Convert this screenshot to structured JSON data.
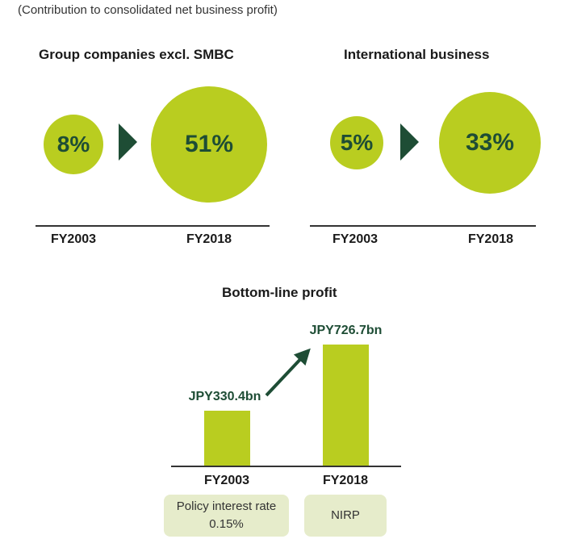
{
  "caption": "(Contribution to consolidated net business profit)",
  "colors": {
    "accent": "#b9cd20",
    "dark_green": "#1e4d35",
    "pill_bg": "#e6eccb"
  },
  "chart_data": [
    {
      "type": "bubble",
      "title": "Group companies excl. SMBC",
      "categories": [
        "FY2003",
        "FY2018"
      ],
      "values": [
        8,
        51
      ],
      "labels": [
        "8%",
        "51%"
      ],
      "unit": "%"
    },
    {
      "type": "bubble",
      "title": "International business",
      "categories": [
        "FY2003",
        "FY2018"
      ],
      "values": [
        5,
        33
      ],
      "labels": [
        "5%",
        "33%"
      ],
      "unit": "%"
    },
    {
      "type": "bar",
      "title": "Bottom-line profit",
      "categories": [
        "FY2003",
        "FY2018"
      ],
      "values": [
        330.4,
        726.7
      ],
      "labels": [
        "JPY330.4bn",
        "JPY726.7bn"
      ],
      "unit": "JPY bn",
      "ylim": [
        0,
        726.7
      ],
      "notes": [
        {
          "line1": "Policy interest rate",
          "line2": "0.15%"
        },
        {
          "line1": "NIRP",
          "line2": ""
        }
      ]
    }
  ]
}
